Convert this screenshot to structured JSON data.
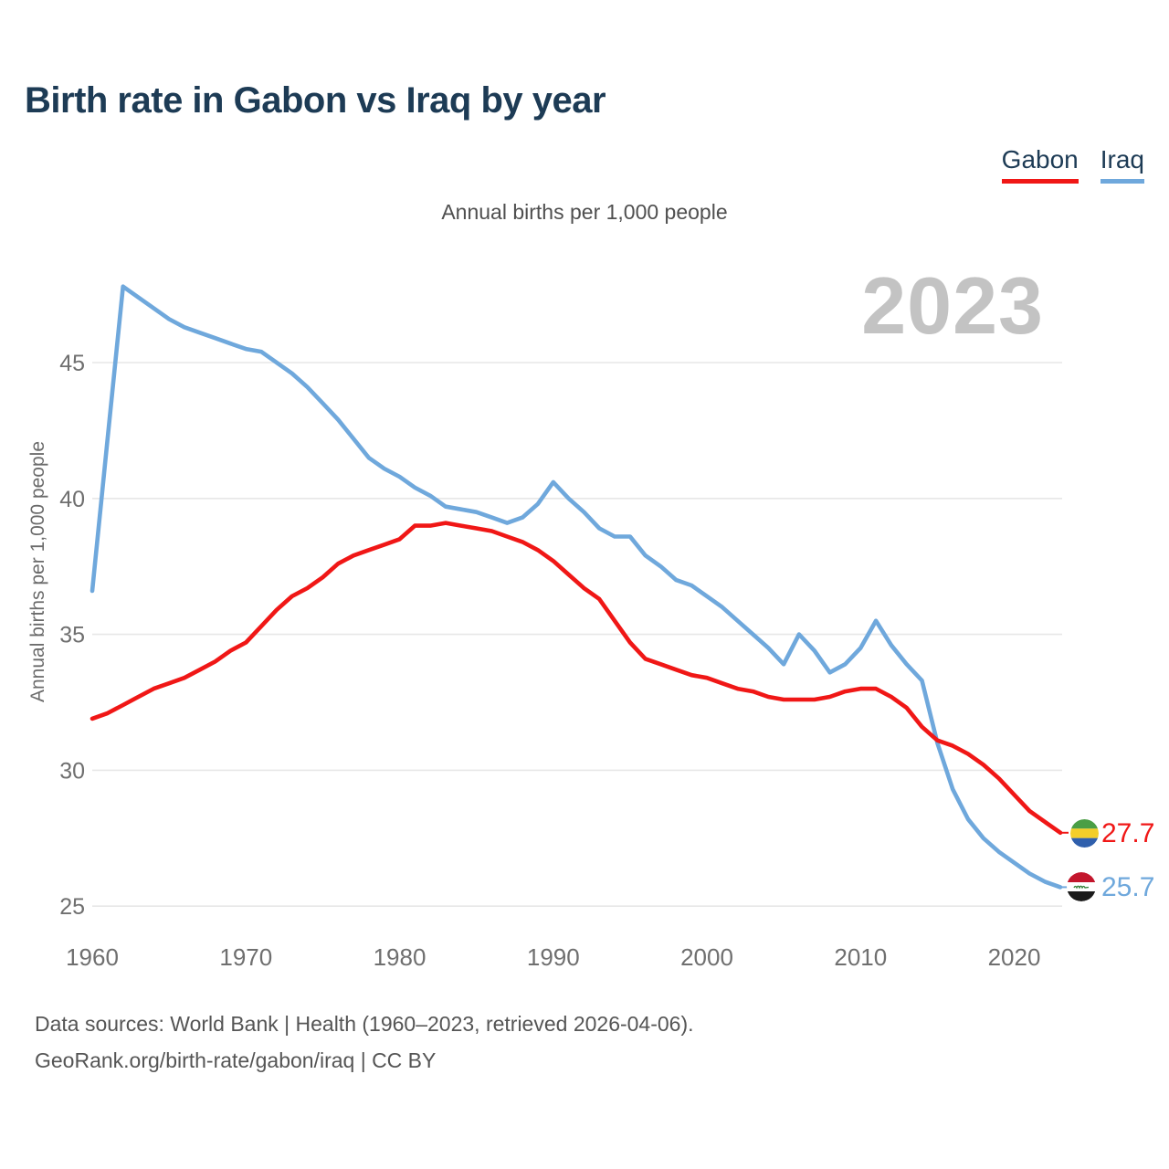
{
  "header": {
    "title": "Birth rate in Gabon vs Iraq by year",
    "subtitle": "Annual births per 1,000 people"
  },
  "legend": [
    {
      "label": "Gabon",
      "color": "#f01716"
    },
    {
      "label": "Iraq",
      "color": "#6fa8dc"
    }
  ],
  "watermark": "2023",
  "y_axis": {
    "label": "Annual births per 1,000 people"
  },
  "end_labels": {
    "gabon": {
      "value": "27.7",
      "flag": "gabon-flag"
    },
    "iraq": {
      "value": "25.7",
      "flag": "iraq-flag"
    }
  },
  "footer": {
    "line1": "Data sources: World Bank | Health (1960–2023, retrieved 2026-04-06).",
    "line2": "GeoRank.org/birth-rate/gabon/iraq | CC BY"
  },
  "chart_data": {
    "type": "line",
    "title": "Birth rate in Gabon vs Iraq by year",
    "ylabel": "Annual births per 1,000 people",
    "xlabel": "",
    "grid": "horizontal",
    "legend_position": "top-right",
    "xticks": [
      1960,
      1970,
      1980,
      1990,
      2000,
      2010,
      2020
    ],
    "yticks": [
      25,
      30,
      35,
      40,
      45
    ],
    "ylim": [
      24.5,
      48.5
    ],
    "xlim": [
      1960,
      2023
    ],
    "x": [
      1960,
      1961,
      1962,
      1963,
      1964,
      1965,
      1966,
      1967,
      1968,
      1969,
      1970,
      1971,
      1972,
      1973,
      1974,
      1975,
      1976,
      1977,
      1978,
      1979,
      1980,
      1981,
      1982,
      1983,
      1984,
      1985,
      1986,
      1987,
      1988,
      1989,
      1990,
      1991,
      1992,
      1993,
      1994,
      1995,
      1996,
      1997,
      1998,
      1999,
      2000,
      2001,
      2002,
      2003,
      2004,
      2005,
      2006,
      2007,
      2008,
      2009,
      2010,
      2011,
      2012,
      2013,
      2014,
      2015,
      2016,
      2017,
      2018,
      2019,
      2020,
      2021,
      2022,
      2023
    ],
    "series": [
      {
        "name": "Iraq",
        "color": "#6fa8dc",
        "end_value": 25.7,
        "values": [
          36.6,
          42.2,
          47.8,
          47.4,
          47.0,
          46.6,
          46.3,
          46.1,
          45.9,
          45.7,
          45.5,
          45.4,
          45.0,
          44.6,
          44.1,
          43.5,
          42.9,
          42.2,
          41.5,
          41.1,
          40.8,
          40.4,
          40.1,
          39.7,
          39.6,
          39.5,
          39.3,
          39.1,
          39.3,
          39.8,
          40.6,
          40.0,
          39.5,
          38.9,
          38.6,
          38.6,
          37.9,
          37.5,
          37.0,
          36.8,
          36.4,
          36.0,
          35.5,
          35.0,
          34.5,
          33.9,
          35.0,
          34.4,
          33.6,
          33.9,
          34.5,
          35.5,
          34.6,
          33.9,
          33.3,
          31.0,
          29.3,
          28.2,
          27.5,
          27.0,
          26.6,
          26.2,
          25.9,
          25.7
        ]
      },
      {
        "name": "Gabon",
        "color": "#f01716",
        "end_value": 27.7,
        "values": [
          31.9,
          32.1,
          32.4,
          32.7,
          33.0,
          33.2,
          33.4,
          33.7,
          34.0,
          34.4,
          34.7,
          35.3,
          35.9,
          36.4,
          36.7,
          37.1,
          37.6,
          37.9,
          38.1,
          38.3,
          38.5,
          39.0,
          39.0,
          39.1,
          39.0,
          38.9,
          38.8,
          38.6,
          38.4,
          38.1,
          37.7,
          37.2,
          36.7,
          36.3,
          35.5,
          34.7,
          34.1,
          33.9,
          33.7,
          33.5,
          33.4,
          33.2,
          33.0,
          32.9,
          32.7,
          32.6,
          32.6,
          32.6,
          32.7,
          32.9,
          33.0,
          33.0,
          32.7,
          32.3,
          31.6,
          31.1,
          30.9,
          30.6,
          30.2,
          29.7,
          29.1,
          28.5,
          28.1,
          27.7
        ]
      }
    ]
  }
}
